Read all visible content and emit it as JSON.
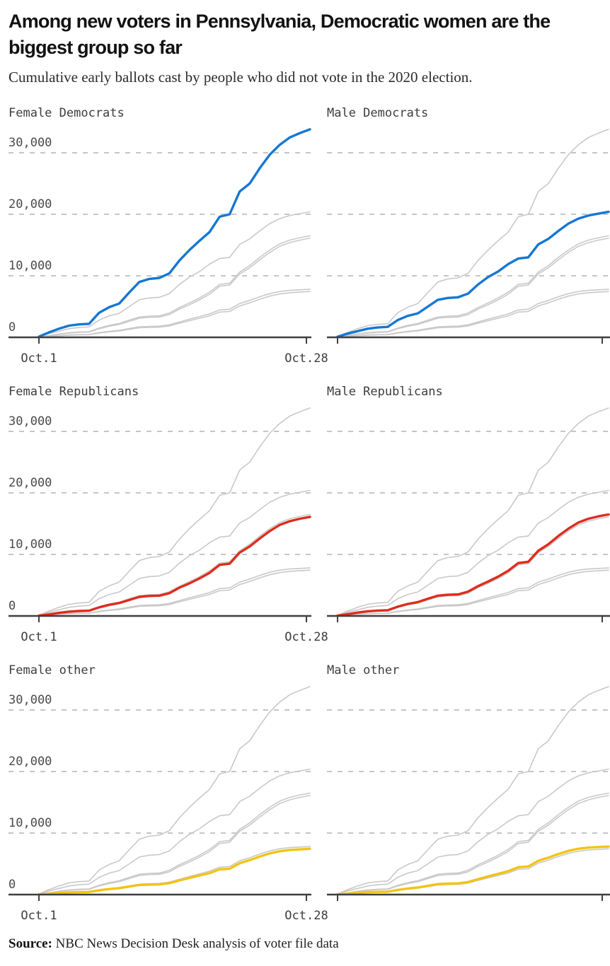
{
  "header": {
    "title": "Among new voters in Pennsylvania, Democratic women are the biggest group so far",
    "subtitle": "Cumulative early ballots cast by people who did not vote in the 2020 election."
  },
  "source": {
    "label": "Source:",
    "text": " NBC News Decision Desk analysis of voter file data"
  },
  "colors": {
    "democrat_blue": "#1477d4",
    "republican_red": "#df2c1d",
    "other_yellow": "#f2c413",
    "muted_gray_line": "#c9c9c9",
    "gridline_gray": "#c6c6c6",
    "axis_dark": "#3f3f3f",
    "label_gray": "#4a4a4a"
  },
  "chart_data": {
    "type": "line",
    "layout": "small multiples, 2 columns x 3 rows; each panel draws all six series in gray and highlights one series in its party color; dashed horizontal gridlines; y labels and x labels only on left-column panels",
    "x_unit": "daily cumulative count, Oct 1 through Oct 28",
    "x_tick_labels": [
      "Oct.1",
      "Oct.28"
    ],
    "ylim": [
      0,
      34500
    ],
    "yticks": [
      0,
      10000,
      20000,
      30000
    ],
    "ytick_labels": [
      "0",
      "10,000",
      "20,000",
      "30,000"
    ],
    "grid": "dashed lines at 10,000 / 20,000 / 30,000",
    "panels": [
      {
        "title": "Female Democrats",
        "highlight": "female_democrats",
        "color": "#1477d4",
        "show_y_labels": true,
        "show_x_labels": true
      },
      {
        "title": "Male Democrats",
        "highlight": "male_democrats",
        "color": "#1477d4",
        "show_y_labels": false,
        "show_x_labels": false
      },
      {
        "title": "Female Republicans",
        "highlight": "female_republicans",
        "color": "#df2c1d",
        "show_y_labels": true,
        "show_x_labels": true
      },
      {
        "title": "Male Republicans",
        "highlight": "male_republicans",
        "color": "#df2c1d",
        "show_y_labels": false,
        "show_x_labels": false
      },
      {
        "title": "Female other",
        "highlight": "female_other",
        "color": "#f2c413",
        "show_y_labels": true,
        "show_x_labels": true
      },
      {
        "title": "Male other",
        "highlight": "male_other",
        "color": "#f2c413",
        "show_y_labels": false,
        "show_x_labels": false
      }
    ],
    "series": [
      {
        "id": "female_democrats",
        "label": "Female Democrats",
        "values": [
          100,
          800,
          1400,
          1900,
          2100,
          2200,
          4000,
          4900,
          5500,
          7300,
          9000,
          9500,
          9650,
          10400,
          12500,
          14200,
          15700,
          17100,
          19600,
          20000,
          23700,
          25000,
          27500,
          29700,
          31300,
          32500,
          33200,
          33800
        ]
      },
      {
        "id": "male_democrats",
        "label": "Male Democrats",
        "values": [
          100,
          600,
          1000,
          1400,
          1600,
          1700,
          2800,
          3500,
          3900,
          5000,
          6100,
          6400,
          6500,
          7100,
          8600,
          9800,
          10700,
          11900,
          12800,
          13000,
          15100,
          16000,
          17300,
          18500,
          19300,
          19800,
          20100,
          20400
        ]
      },
      {
        "id": "female_republicans",
        "label": "Female Republicans",
        "values": [
          50,
          250,
          500,
          700,
          800,
          850,
          1400,
          1800,
          2100,
          2600,
          3100,
          3250,
          3300,
          3700,
          4600,
          5300,
          6100,
          7000,
          8300,
          8500,
          10300,
          11300,
          12600,
          13800,
          14800,
          15400,
          15800,
          16100
        ]
      },
      {
        "id": "male_republicans",
        "label": "Male Republicans",
        "values": [
          60,
          280,
          550,
          760,
          870,
          920,
          1500,
          1950,
          2250,
          2800,
          3300,
          3450,
          3500,
          3950,
          4850,
          5600,
          6400,
          7350,
          8600,
          8800,
          10600,
          11650,
          13000,
          14200,
          15200,
          15800,
          16200,
          16500
        ]
      },
      {
        "id": "female_other",
        "label": "Female other",
        "values": [
          30,
          120,
          250,
          350,
          400,
          420,
          700,
          900,
          1050,
          1300,
          1550,
          1620,
          1650,
          1850,
          2300,
          2700,
          3100,
          3500,
          4100,
          4200,
          5100,
          5600,
          6200,
          6700,
          7050,
          7250,
          7350,
          7450
        ]
      },
      {
        "id": "male_other",
        "label": "Male other",
        "values": [
          40,
          140,
          280,
          390,
          440,
          460,
          760,
          980,
          1150,
          1420,
          1700,
          1780,
          1820,
          2030,
          2500,
          2950,
          3380,
          3800,
          4450,
          4560,
          5500,
          6000,
          6600,
          7100,
          7450,
          7630,
          7720,
          7800
        ]
      }
    ]
  }
}
